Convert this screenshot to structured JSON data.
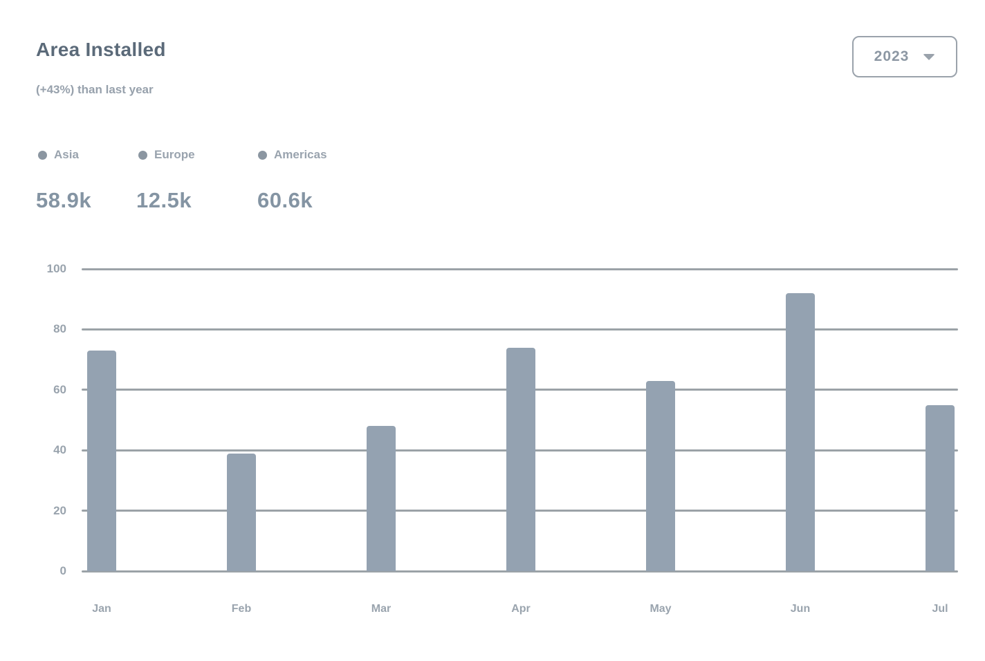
{
  "card": {
    "title": "Area Installed",
    "subtitle": "(+43%) than last year"
  },
  "year_selector": {
    "value": "2023",
    "icon": "chevron-down"
  },
  "legend": {
    "items": [
      {
        "label": "Asia",
        "total": "58.9k",
        "dot_color": "#8b96a1"
      },
      {
        "label": "Europe",
        "total": "12.5k",
        "dot_color": "#8b96a1"
      },
      {
        "label": "Americas",
        "total": "60.6k",
        "dot_color": "#8b96a1"
      }
    ]
  },
  "chart_data": {
    "type": "bar",
    "title": "Area Installed",
    "categories": [
      "Jan",
      "Feb",
      "Mar",
      "Apr",
      "May",
      "Jun",
      "Jul"
    ],
    "series": [
      {
        "name": "Area Installed",
        "values": [
          73,
          39,
          48,
          74,
          63,
          92,
          55
        ]
      }
    ],
    "xlabel": "",
    "ylabel": "",
    "ylim": [
      0,
      100
    ],
    "yticks": [
      0,
      20,
      40,
      60,
      80,
      100
    ],
    "grid": "horizontal",
    "legend_position": "top-left",
    "bar_color": "#94a2b1",
    "grid_color": "#9ba2a7"
  },
  "colors": {
    "background": "#ffffff",
    "title_text": "#5b6a79",
    "muted_text": "#97a1ac",
    "total_text": "#8494a3",
    "border": "#9aa2ab",
    "bar": "#94a2b1",
    "grid": "#9ba2a7"
  }
}
